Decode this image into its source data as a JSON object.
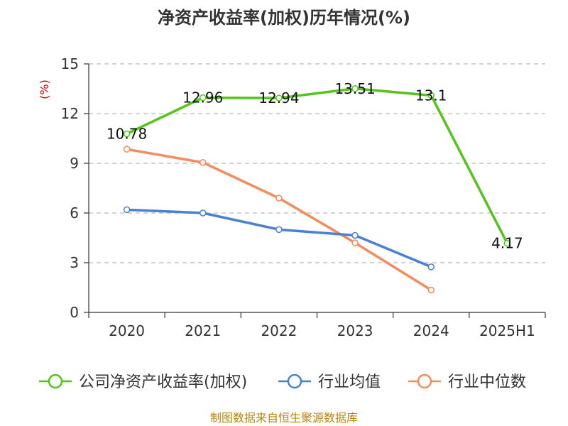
{
  "chart_data": {
    "type": "line",
    "title": "净资产收益率(加权)历年情况(%)",
    "ylabel": "(%)",
    "categories": [
      "2020",
      "2021",
      "2022",
      "2023",
      "2024",
      "2025H1"
    ],
    "yticks": [
      "0",
      "3",
      "6",
      "9",
      "12",
      "15"
    ],
    "ylim": [
      0,
      15
    ],
    "grid": true,
    "legend_position": "bottom",
    "series": [
      {
        "name": "公司净资产收益率(加权)",
        "color": "#52c41a",
        "values": [
          10.78,
          12.96,
          12.94,
          13.51,
          13.1,
          4.17
        ],
        "labels": [
          "10.78",
          "12.96",
          "12.94",
          "13.51",
          "13.1",
          "4.17"
        ]
      },
      {
        "name": "行业均值",
        "color": "#4a7fd6",
        "values": [
          6.2,
          6.0,
          5.0,
          4.65,
          2.75,
          null
        ]
      },
      {
        "name": "行业中位数",
        "color": "#f28c5a",
        "values": [
          9.85,
          9.05,
          6.9,
          4.2,
          1.35,
          null
        ]
      }
    ]
  },
  "source": "制图数据来自恒生聚源数据库"
}
